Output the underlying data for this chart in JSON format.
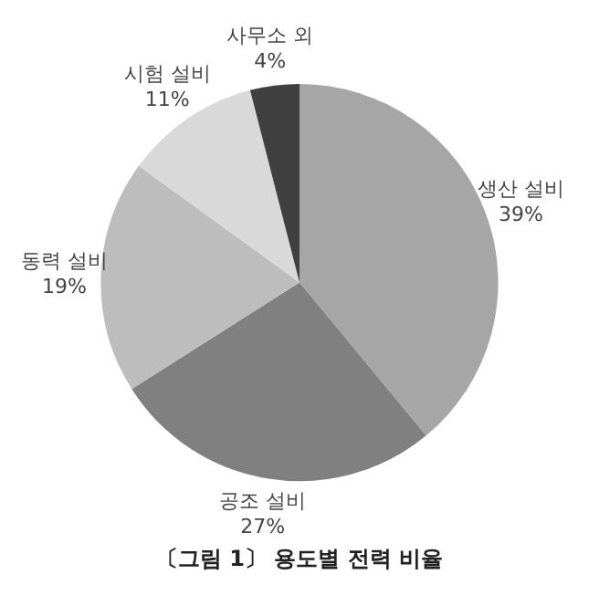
{
  "chart_data": {
    "type": "pie",
    "title": "〔그림 1〕 용도별 전력 비율",
    "categories": [
      "생산 설비",
      "공조 설비",
      "동력 설비",
      "시험 설비",
      "사무소 외"
    ],
    "values": [
      39,
      27,
      19,
      11,
      4
    ],
    "colors": [
      "#a6a6a6",
      "#808080",
      "#bdbdbd",
      "#d9d9d9",
      "#404040"
    ],
    "value_labels": [
      "39%",
      "27%",
      "19%",
      "11%",
      "4%"
    ],
    "legend": false
  }
}
